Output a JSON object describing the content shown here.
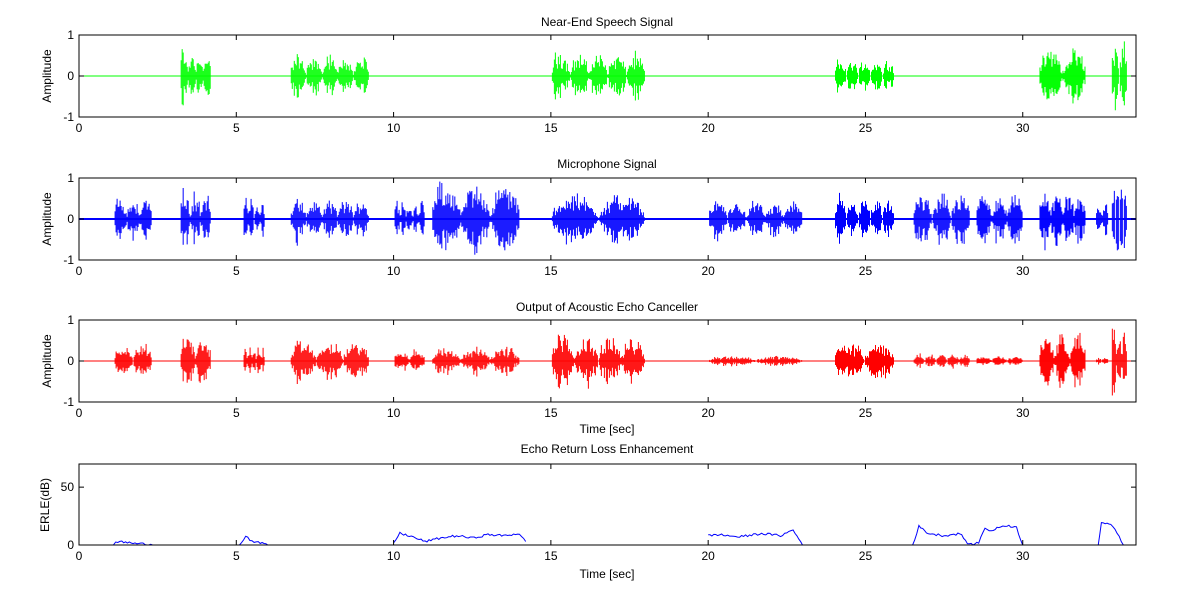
{
  "chart_data": [
    {
      "type": "line",
      "title": "Near-End Speech Signal",
      "xlabel": "",
      "ylabel": "Amplitude",
      "xlim": [
        0,
        33.6
      ],
      "ylim": [
        -1,
        1
      ],
      "xticks": [
        0,
        5,
        10,
        15,
        20,
        25,
        30
      ],
      "yticks": [
        -1,
        0,
        1
      ],
      "grid": false,
      "series": [
        {
          "color": "#00ff00",
          "bursts": [
            {
              "start": 3.2,
              "end": 4.2,
              "peak": 0.75
            },
            {
              "start": 6.7,
              "end": 9.2,
              "peak": 0.55
            },
            {
              "start": 15.0,
              "end": 18.0,
              "peak": 0.65
            },
            {
              "start": 24.0,
              "end": 25.9,
              "peak": 0.5
            },
            {
              "start": 30.5,
              "end": 32.0,
              "peak": 0.8
            },
            {
              "start": 32.8,
              "end": 33.3,
              "peak": 1.0
            }
          ]
        }
      ]
    },
    {
      "type": "line",
      "title": "Microphone Signal",
      "xlabel": "",
      "ylabel": "Amplitude",
      "xlim": [
        0,
        33.6
      ],
      "ylim": [
        -1,
        1
      ],
      "xticks": [
        0,
        5,
        10,
        15,
        20,
        25,
        30
      ],
      "yticks": [
        -1,
        0,
        1
      ],
      "grid": false,
      "series": [
        {
          "color": "#0000ff",
          "bursts": [
            {
              "start": 1.1,
              "end": 2.3,
              "peak": 0.6
            },
            {
              "start": 3.2,
              "end": 4.2,
              "peak": 0.75
            },
            {
              "start": 5.2,
              "end": 5.9,
              "peak": 0.6
            },
            {
              "start": 6.7,
              "end": 9.2,
              "peak": 0.55
            },
            {
              "start": 10.0,
              "end": 11.0,
              "peak": 0.5
            },
            {
              "start": 11.2,
              "end": 14.0,
              "peak": 1.0
            },
            {
              "start": 15.0,
              "end": 18.0,
              "peak": 0.7
            },
            {
              "start": 20.0,
              "end": 23.0,
              "peak": 0.5
            },
            {
              "start": 24.0,
              "end": 25.9,
              "peak": 0.55
            },
            {
              "start": 26.5,
              "end": 28.3,
              "peak": 0.7
            },
            {
              "start": 28.5,
              "end": 30.0,
              "peak": 0.75
            },
            {
              "start": 30.5,
              "end": 32.0,
              "peak": 0.8
            },
            {
              "start": 32.3,
              "end": 32.7,
              "peak": 0.5
            },
            {
              "start": 32.8,
              "end": 33.3,
              "peak": 1.0
            }
          ]
        }
      ]
    },
    {
      "type": "line",
      "title": "Output of Acoustic Echo Canceller",
      "xlabel": "Time [sec]",
      "ylabel": "Amplitude",
      "xlim": [
        0,
        33.6
      ],
      "ylim": [
        -1,
        1
      ],
      "xticks": [
        0,
        5,
        10,
        15,
        20,
        25,
        30
      ],
      "yticks": [
        -1,
        0,
        1
      ],
      "grid": false,
      "series": [
        {
          "color": "#ff0000",
          "bursts": [
            {
              "start": 1.1,
              "end": 2.3,
              "peak": 0.5
            },
            {
              "start": 3.2,
              "end": 4.2,
              "peak": 0.75
            },
            {
              "start": 5.2,
              "end": 5.9,
              "peak": 0.35
            },
            {
              "start": 6.7,
              "end": 9.2,
              "peak": 0.55
            },
            {
              "start": 10.0,
              "end": 11.0,
              "peak": 0.35
            },
            {
              "start": 11.2,
              "end": 14.0,
              "peak": 0.4
            },
            {
              "start": 15.0,
              "end": 18.0,
              "peak": 0.7
            },
            {
              "start": 20.0,
              "end": 23.0,
              "peak": 0.15
            },
            {
              "start": 24.0,
              "end": 25.9,
              "peak": 0.55
            },
            {
              "start": 26.5,
              "end": 28.3,
              "peak": 0.2
            },
            {
              "start": 28.5,
              "end": 30.0,
              "peak": 0.15
            },
            {
              "start": 30.5,
              "end": 32.0,
              "peak": 0.8
            },
            {
              "start": 32.3,
              "end": 32.7,
              "peak": 0.1
            },
            {
              "start": 32.8,
              "end": 33.3,
              "peak": 1.0
            }
          ]
        }
      ]
    },
    {
      "type": "line",
      "title": "Echo Return Loss Enhancement",
      "xlabel": "Time [sec]",
      "ylabel": "ERLE(dB)",
      "xlim": [
        0,
        33.6
      ],
      "ylim": [
        0,
        70
      ],
      "xticks": [
        0,
        5,
        10,
        15,
        20,
        25,
        30
      ],
      "yticks": [
        0,
        50
      ],
      "grid": false,
      "series": [
        {
          "color": "#0000ff",
          "segments": [
            {
              "x": [
                1.1,
                1.3,
                1.6,
                1.9,
                2.1,
                2.4
              ],
              "y": [
                1,
                3,
                2,
                1,
                1,
                0
              ]
            },
            {
              "x": [
                5.1,
                5.3,
                5.5,
                5.7,
                6.0
              ],
              "y": [
                0,
                8,
                3,
                2,
                0
              ]
            },
            {
              "x": [
                10.0,
                10.2,
                10.5,
                11.0,
                11.5,
                12.0,
                12.5,
                13.0,
                13.5,
                14.0,
                14.2
              ],
              "y": [
                2,
                10,
                8,
                3,
                6,
                8,
                6,
                9,
                8,
                10,
                3
              ]
            },
            {
              "x": [
                20.0,
                20.3,
                21.0,
                21.7,
                22.3,
                22.7,
                23.0
              ],
              "y": [
                8,
                9,
                7,
                10,
                8,
                13,
                0
              ]
            },
            {
              "x": [
                26.5,
                26.7,
                27.0,
                27.5,
                28.0,
                28.3,
                28.6,
                28.8,
                29.0,
                29.3,
                29.5,
                29.8,
                30.0
              ],
              "y": [
                0,
                16,
                10,
                8,
                10,
                0,
                2,
                15,
                12,
                16,
                17,
                15,
                0
              ]
            },
            {
              "x": [
                32.4,
                32.5,
                32.8,
                33.0,
                33.2
              ],
              "y": [
                0,
                20,
                18,
                10,
                0
              ]
            }
          ]
        }
      ]
    }
  ]
}
